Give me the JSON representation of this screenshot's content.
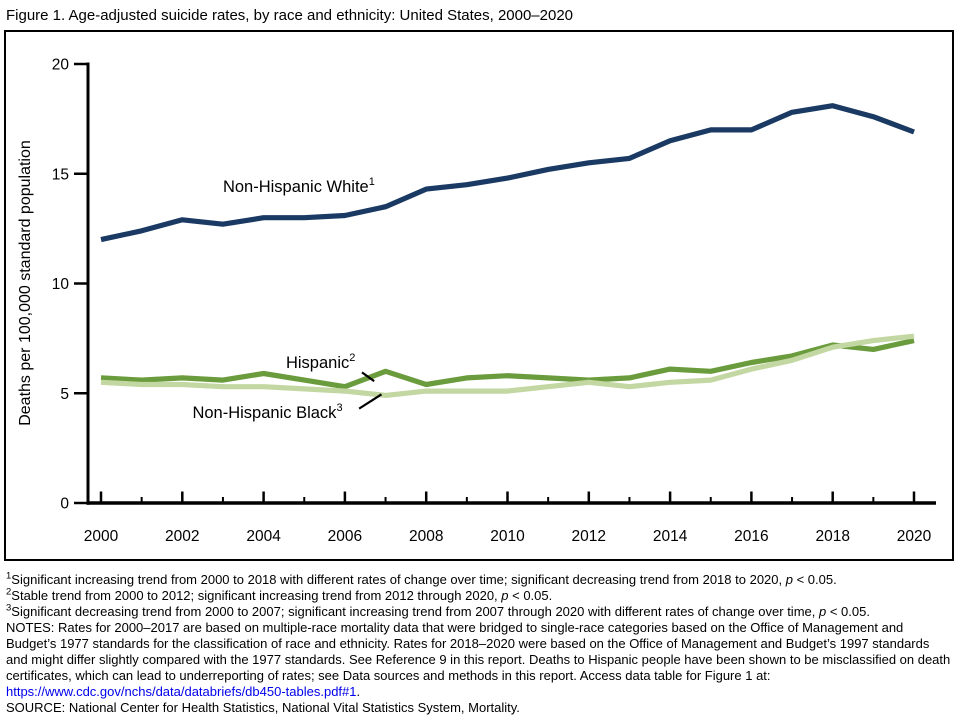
{
  "title": "Figure 1. Age-adjusted suicide rates, by race and ethnicity: United States, 2000–2020",
  "chart_data": {
    "type": "line",
    "x": [
      2000,
      2001,
      2002,
      2003,
      2004,
      2005,
      2006,
      2007,
      2008,
      2009,
      2010,
      2011,
      2012,
      2013,
      2014,
      2015,
      2016,
      2017,
      2018,
      2019,
      2020
    ],
    "x_major_ticks": [
      2000,
      2002,
      2004,
      2006,
      2008,
      2010,
      2012,
      2014,
      2016,
      2018,
      2020
    ],
    "x_minor_ticks": [
      2001,
      2003,
      2005,
      2007,
      2009,
      2011,
      2013,
      2015,
      2017,
      2019
    ],
    "y_axis": {
      "min": 0,
      "max": 20,
      "ticks": [
        0,
        5,
        10,
        15,
        20
      ],
      "label": "Deaths per 100,000 standard population"
    },
    "grid": "off",
    "legend_position": "inline-labels",
    "series": [
      {
        "name": "Non-Hispanic White",
        "sup": "1",
        "color": "#1a3a64",
        "values": [
          12.0,
          12.4,
          12.9,
          12.7,
          13.0,
          13.0,
          13.1,
          13.5,
          14.3,
          14.5,
          14.8,
          15.2,
          15.5,
          15.7,
          16.5,
          17.0,
          17.0,
          17.8,
          18.1,
          17.6,
          16.9
        ],
        "label": {
          "x": 2003.0,
          "y": 14.17,
          "anchor": "start"
        }
      },
      {
        "name": "Hispanic",
        "sup": "2",
        "color": "#6a9c3d",
        "values": [
          5.7,
          5.6,
          5.7,
          5.6,
          5.9,
          5.6,
          5.3,
          6.0,
          5.4,
          5.7,
          5.8,
          5.7,
          5.6,
          5.7,
          6.1,
          6.0,
          6.4,
          6.7,
          7.2,
          7.0,
          7.4
        ],
        "label": {
          "x": 2004.55,
          "y": 6.15,
          "anchor": "start"
        },
        "leader": {
          "x1": 2006.42,
          "y1": 5.95,
          "x2": 2006.72,
          "y2": 5.55
        }
      },
      {
        "name": "Non-Hispanic Black",
        "sup": "3",
        "color": "#c3d7a2",
        "values": [
          5.5,
          5.4,
          5.4,
          5.3,
          5.3,
          5.2,
          5.1,
          4.9,
          5.1,
          5.1,
          5.1,
          5.3,
          5.5,
          5.3,
          5.5,
          5.6,
          6.1,
          6.5,
          7.1,
          7.4,
          7.6
        ],
        "label": {
          "x": 2002.25,
          "y": 3.88,
          "anchor": "start"
        },
        "leader": {
          "x1": 2006.35,
          "y1": 4.3,
          "x2": 2006.9,
          "y2": 4.95
        }
      }
    ]
  },
  "footnotes": {
    "items": [
      {
        "sup": "1",
        "segments": [
          {
            "text": "Significant increasing trend from 2000 to 2018 with different rates of change over time; significant decreasing trend from 2018 to 2020, ",
            "italic": false
          },
          {
            "text": "p",
            "italic": true
          },
          {
            "text": " < 0.05.",
            "italic": false
          }
        ]
      },
      {
        "sup": "2",
        "segments": [
          {
            "text": "Stable trend from 2000 to 2012; significant increasing trend from 2012 through 2020, ",
            "italic": false
          },
          {
            "text": "p",
            "italic": true
          },
          {
            "text": " < 0.05.",
            "italic": false
          }
        ]
      },
      {
        "sup": "3",
        "segments": [
          {
            "text": "Significant decreasing trend from 2000 to 2007; significant increasing trend from 2007 through 2020 with different rates of change over time, ",
            "italic": false
          },
          {
            "text": "p",
            "italic": true
          },
          {
            "text": " < 0.05.",
            "italic": false
          }
        ]
      }
    ],
    "notes_text": "NOTES: Rates for 2000–2017 are based on multiple-race mortality data that were bridged to single-race categories based on the Office of Management and Budget’s 1977 standards for the classification of race and ethnicity. Rates for 2018–2020 were based on the Office of Management and Budget’s 1997 standards and might differ slightly compared with the 1977 standards. See Reference 9 in this report. Deaths to Hispanic people have been shown to be misclassified on death certificates, which can lead to underreporting of rates; see Data sources and methods in this report. Access data table for Figure 1 at:",
    "link_text": "https://www.cdc.gov/nchs/data/databriefs/db450-tables.pdf#1",
    "link_suffix": ".",
    "source_text": "SOURCE: National Center for Health Statistics, National Vital Statistics System, Mortality."
  },
  "colors": {
    "non_hispanic_white_line": "#1a3a64",
    "hispanic_line": "#6a9c3d",
    "non_hispanic_black_line": "#c3d7a2",
    "axis": "#000000",
    "link": "#0000ee",
    "text": "#000000"
  }
}
